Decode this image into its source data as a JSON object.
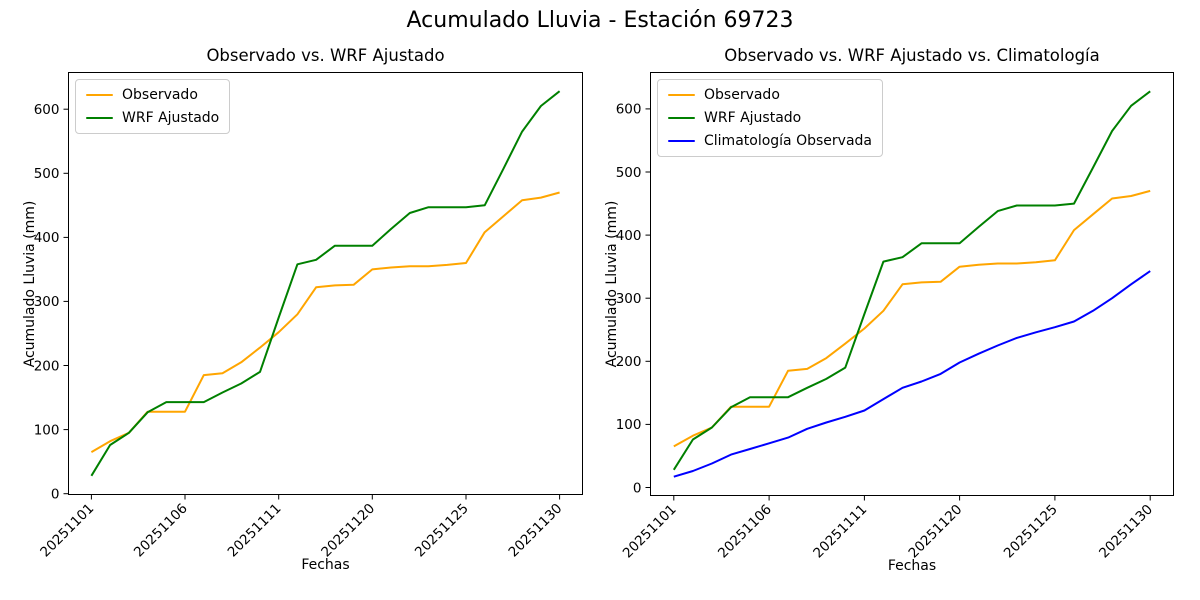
{
  "figure": {
    "title": "Acumulado Lluvia - Estación 69723",
    "background_color": "#ffffff"
  },
  "chart_data": [
    {
      "type": "line",
      "title": "Observado vs. WRF Ajustado",
      "xlabel": "Fechas",
      "ylabel": "Acumulado Lluvia (mm)",
      "x_tick_labels": [
        "20251101",
        "20251106",
        "20251111",
        "20251120",
        "20251125",
        "20251130"
      ],
      "x_tick_indices": [
        0,
        5,
        10,
        15,
        20,
        25
      ],
      "y_ticks": [
        0,
        100,
        200,
        300,
        400,
        500,
        600
      ],
      "ylim": [
        0,
        600
      ],
      "grid": false,
      "legend_position": "upper left",
      "series": [
        {
          "name": "Observado",
          "color": "#FFA500",
          "values": [
            65,
            82,
            95,
            128,
            128,
            128,
            185,
            188,
            205,
            228,
            252,
            280,
            322,
            325,
            326,
            350,
            353,
            355,
            355,
            357,
            360,
            408,
            433,
            458,
            462,
            470
          ]
        },
        {
          "name": "WRF Ajustado",
          "color": "#008000",
          "values": [
            28,
            76,
            95,
            127,
            143,
            143,
            143,
            158,
            172,
            190,
            275,
            358,
            365,
            387,
            387,
            387,
            413,
            438,
            447,
            447,
            447,
            450,
            507,
            565,
            605,
            628
          ]
        }
      ]
    },
    {
      "type": "line",
      "title": "Observado vs. WRF Ajustado vs. Climatología",
      "xlabel": "Fechas",
      "ylabel": "Acumulado Lluvia (mm)",
      "x_tick_labels": [
        "20251101",
        "20251106",
        "20251111",
        "20251120",
        "20251125",
        "20251130"
      ],
      "x_tick_indices": [
        0,
        5,
        10,
        15,
        20,
        25
      ],
      "y_ticks": [
        0,
        100,
        200,
        300,
        400,
        500,
        600
      ],
      "ylim": [
        0,
        600
      ],
      "grid": false,
      "legend_position": "upper left",
      "series": [
        {
          "name": "Observado",
          "color": "#FFA500",
          "values": [
            65,
            82,
            95,
            128,
            128,
            128,
            185,
            188,
            205,
            228,
            252,
            280,
            322,
            325,
            326,
            350,
            353,
            355,
            355,
            357,
            360,
            408,
            433,
            458,
            462,
            470
          ]
        },
        {
          "name": "WRF Ajustado",
          "color": "#008000",
          "values": [
            28,
            76,
            95,
            127,
            143,
            143,
            143,
            158,
            172,
            190,
            275,
            358,
            365,
            387,
            387,
            387,
            413,
            438,
            447,
            447,
            447,
            450,
            507,
            565,
            605,
            628
          ]
        },
        {
          "name": "Climatología Observada",
          "color": "#0000FF",
          "values": [
            17,
            26,
            38,
            52,
            61,
            70,
            79,
            93,
            103,
            112,
            122,
            140,
            158,
            168,
            180,
            198,
            212,
            225,
            237,
            246,
            254,
            263,
            280,
            300,
            322,
            343
          ]
        }
      ]
    }
  ]
}
